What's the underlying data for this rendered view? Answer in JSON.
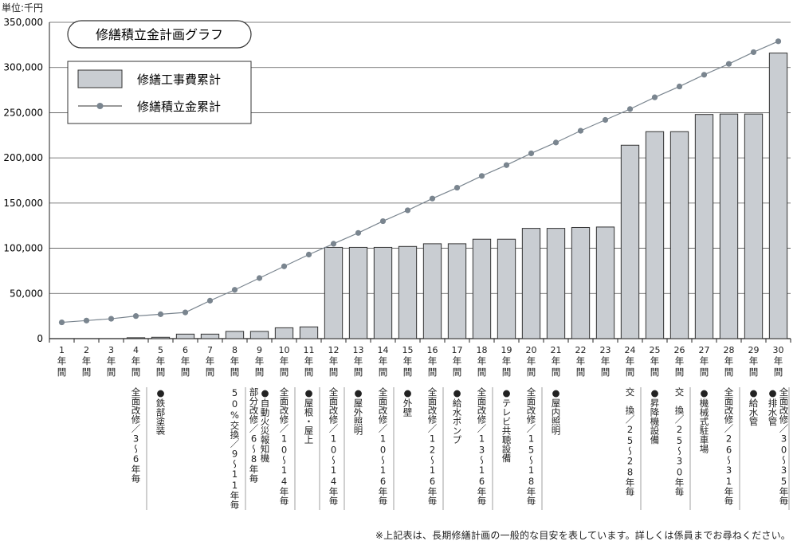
{
  "unit_label": "単位:千円",
  "footnote": "※上記表は、長期修繕計画の一般的な目安を表しています。詳しくは係員までお尋ねください。",
  "chart_data": {
    "type": "bar",
    "title": "修繕積立金計画グラフ",
    "ylim": [
      0,
      350000
    ],
    "yticks": [
      "0",
      "50,000",
      "100,000",
      "150,000",
      "200,000",
      "250,000",
      "300,000",
      "350,000"
    ],
    "ytick_values": [
      0,
      50000,
      100000,
      150000,
      200000,
      250000,
      300000,
      350000
    ],
    "grid": true,
    "legend_placement": "top-left",
    "categories": [
      "1",
      "2",
      "3",
      "4",
      "5",
      "6",
      "7",
      "8",
      "9",
      "10",
      "11",
      "12",
      "13",
      "14",
      "15",
      "16",
      "17",
      "18",
      "19",
      "20",
      "21",
      "22",
      "23",
      "24",
      "25",
      "26",
      "27",
      "28",
      "29",
      "30"
    ],
    "category_suffix": "年間",
    "series": [
      {
        "name": "修繕工事費累計",
        "kind": "bar",
        "color": "#c9cdd2",
        "values": [
          0,
          0,
          0,
          1000,
          1500,
          5000,
          5000,
          8000,
          8000,
          12000,
          13000,
          101000,
          101000,
          101000,
          102000,
          105000,
          105000,
          110000,
          110000,
          122000,
          122000,
          123000,
          123500,
          214000,
          229000,
          229000,
          248000,
          248500,
          248500,
          316000
        ]
      },
      {
        "name": "修繕積立金累計",
        "kind": "line",
        "color": "#7a858f",
        "values": [
          18000,
          20000,
          22000,
          25000,
          27000,
          29000,
          42000,
          54000,
          67000,
          80000,
          93000,
          105000,
          117000,
          130000,
          142000,
          155000,
          167000,
          180000,
          192000,
          205000,
          217000,
          230000,
          242000,
          254000,
          267000,
          279000,
          292000,
          304000,
          317000,
          329000
        ]
      }
    ],
    "annotations": [
      {
        "year": "4",
        "lines": [
          "全面改修／3～6年毎"
        ]
      },
      {
        "year": "5",
        "lines": [
          "●鉄部塗装"
        ]
      },
      {
        "year": "8",
        "lines": [
          "50%交換／9～11年毎"
        ]
      },
      {
        "year": "9",
        "lines": [
          "●自動火災報知機",
          "部分改修／6～8年毎"
        ]
      },
      {
        "year": "10",
        "lines": [
          "全面改修／10～14年毎"
        ]
      },
      {
        "year": "11",
        "lines": [
          "●屋根・屋上"
        ]
      },
      {
        "year": "12",
        "lines": [
          "全面改修／10～14年毎"
        ]
      },
      {
        "year": "13",
        "lines": [
          "●屋外照明"
        ]
      },
      {
        "year": "14",
        "lines": [
          "全面改修／10～16年毎"
        ]
      },
      {
        "year": "15",
        "lines": [
          "●外壁"
        ]
      },
      {
        "year": "16",
        "lines": [
          "全面改修／12～16年毎"
        ]
      },
      {
        "year": "17",
        "lines": [
          "●給水ポンプ"
        ]
      },
      {
        "year": "18",
        "lines": [
          "全面改修／13～16年毎"
        ]
      },
      {
        "year": "19",
        "lines": [
          "●テレビ共聴設備"
        ]
      },
      {
        "year": "20",
        "lines": [
          "全面改修／15～18年毎"
        ]
      },
      {
        "year": "21",
        "lines": [
          "●屋内照明"
        ]
      },
      {
        "year": "24",
        "lines": [
          "交　換／25～28年毎"
        ]
      },
      {
        "year": "25",
        "lines": [
          "●昇降機設備"
        ]
      },
      {
        "year": "26",
        "lines": [
          "交　換／25～30年毎"
        ]
      },
      {
        "year": "27",
        "lines": [
          "●機械式駐車場"
        ]
      },
      {
        "year": "28",
        "lines": [
          "全面改修／26～31年毎"
        ]
      },
      {
        "year": "29",
        "lines": [
          "●給水管"
        ]
      },
      {
        "year": "30",
        "lines": [
          "全面改修／30～35年毎",
          "●排水管"
        ]
      }
    ]
  }
}
